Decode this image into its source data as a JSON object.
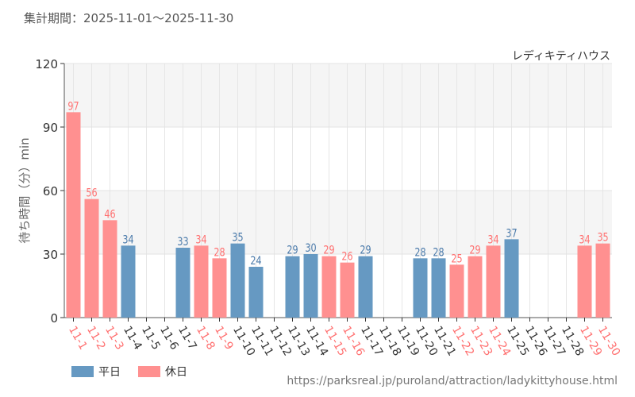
{
  "header": {
    "period": "集計期間：2025-11-01〜2025-11-30"
  },
  "footer": {
    "url": "https://parksreal.jp/puroland/attraction/ladykittyhouse.html"
  },
  "colors": {
    "weekday": "#6699c2",
    "holiday": "#ff9090",
    "weekday_text": "#4a7aaa",
    "holiday_text": "#ff7070"
  },
  "chart_data": {
    "type": "bar",
    "title": "レディキティハウス",
    "xlabel": "",
    "ylabel": "待ち時間（分）min",
    "ylim": [
      0,
      120
    ],
    "yticks": [
      0,
      30,
      60,
      90,
      120
    ],
    "grid": true,
    "legend_position": "bottom-left",
    "legend": [
      {
        "key": "weekday",
        "label": "平日"
      },
      {
        "key": "holiday",
        "label": "休日"
      }
    ],
    "categories": [
      "11-1",
      "11-2",
      "11-3",
      "11-4",
      "11-5",
      "11-6",
      "11-7",
      "11-8",
      "11-9",
      "11-10",
      "11-11",
      "11-12",
      "11-13",
      "11-14",
      "11-15",
      "11-16",
      "11-17",
      "11-18",
      "11-19",
      "11-20",
      "11-21",
      "11-22",
      "11-23",
      "11-24",
      "11-25",
      "11-26",
      "11-27",
      "11-28",
      "11-29",
      "11-30"
    ],
    "values": [
      97,
      56,
      46,
      34,
      null,
      null,
      33,
      34,
      28,
      35,
      24,
      null,
      29,
      30,
      29,
      26,
      29,
      null,
      null,
      28,
      28,
      25,
      29,
      34,
      37,
      null,
      null,
      null,
      34,
      35
    ],
    "day_type": [
      "holiday",
      "holiday",
      "holiday",
      "weekday",
      "weekday",
      "weekday",
      "weekday",
      "holiday",
      "holiday",
      "weekday",
      "weekday",
      "weekday",
      "weekday",
      "weekday",
      "holiday",
      "holiday",
      "weekday",
      "weekday",
      "weekday",
      "weekday",
      "weekday",
      "holiday",
      "holiday",
      "holiday",
      "weekday",
      "weekday",
      "weekday",
      "weekday",
      "holiday",
      "holiday"
    ]
  }
}
